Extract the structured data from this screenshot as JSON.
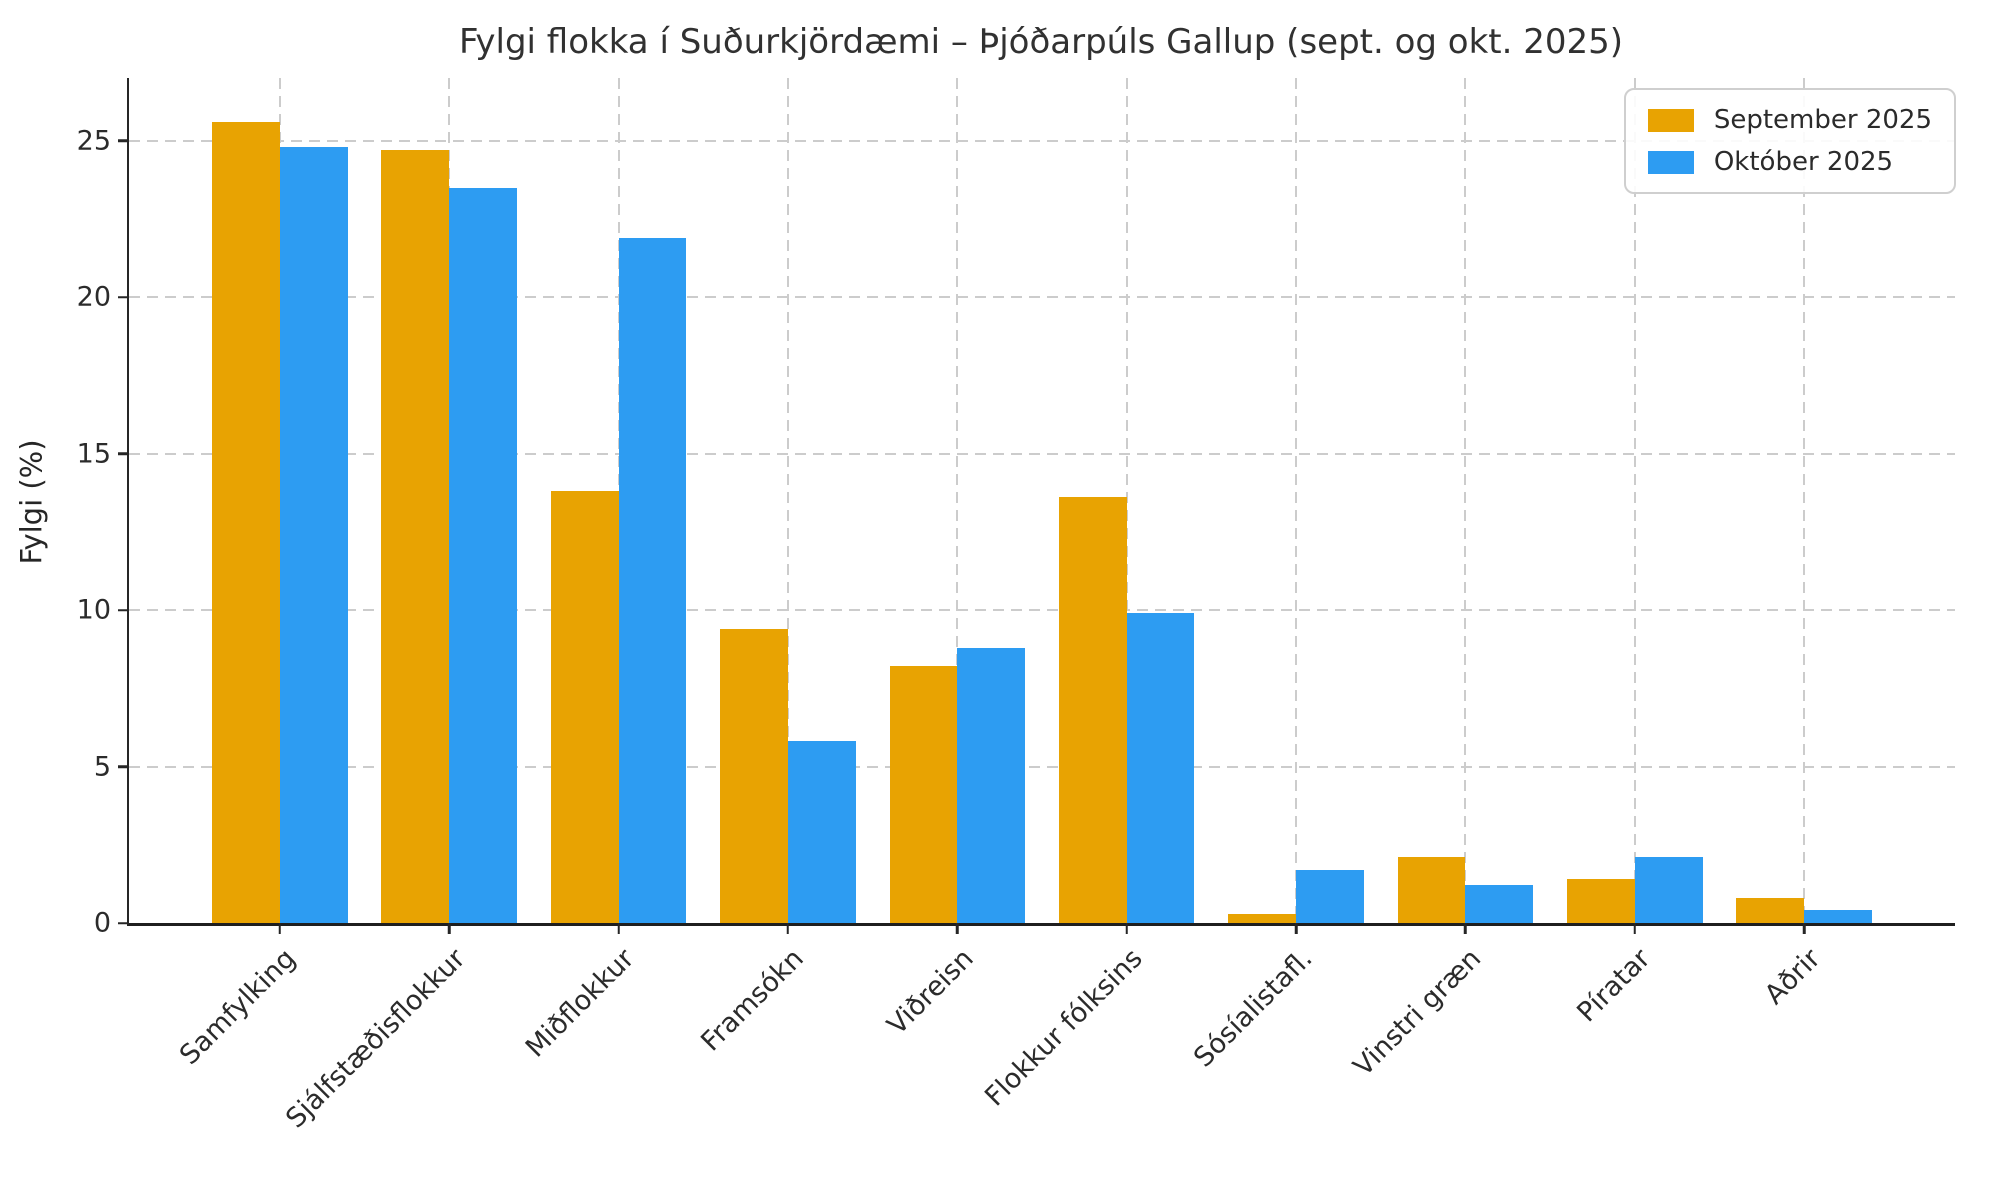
{
  "chart_data": {
    "type": "bar",
    "title": "Fylgi flokka í Suðurkjördæmi – Þjóðarpúls Gallup (sept. og okt. 2025)",
    "xlabel": "",
    "ylabel": "Fylgi (%)",
    "categories": [
      "Samfylking",
      "Sjálfstæðisflokkur",
      "Miðflokkur",
      "Framsókn",
      "Viðreisn",
      "Flokkur fólksins",
      "Sósíalistafl.",
      "Vinstri græn",
      "Píratar",
      "Aðrir"
    ],
    "series": [
      {
        "name": "September 2025",
        "color": "#E8A302",
        "values": [
          25.6,
          24.7,
          13.8,
          9.4,
          8.2,
          13.6,
          0.3,
          2.1,
          1.4,
          0.8
        ]
      },
      {
        "name": "Október 2025",
        "color": "#2D9CF2",
        "values": [
          24.8,
          23.5,
          21.9,
          5.8,
          8.8,
          9.9,
          1.7,
          1.2,
          2.1,
          0.4
        ]
      }
    ],
    "yticks": [
      0,
      5,
      10,
      15,
      20,
      25
    ],
    "ylim": [
      0,
      27
    ],
    "xlim_units": [
      -0.89,
      9.89
    ],
    "bar_width_units": 0.4,
    "grid": true,
    "grid_style": "dashed",
    "grid_color": "#cccccc",
    "legend_position": "upper right",
    "background": "#ffffff",
    "text_color": "#2b2b2b"
  }
}
